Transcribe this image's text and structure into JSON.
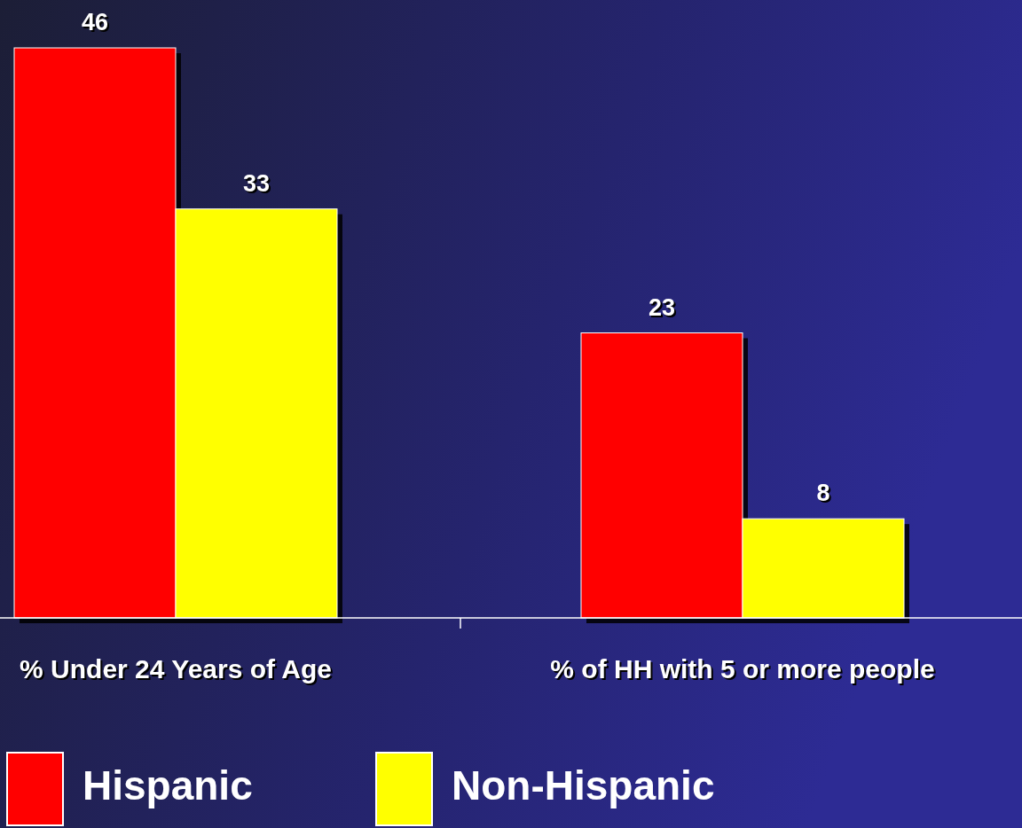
{
  "chart_data": {
    "type": "bar",
    "categories": [
      "% Under 24 Years of Age",
      "% of HH with 5 or more people"
    ],
    "series": [
      {
        "name": "Hispanic",
        "color": "#ff0000",
        "values": [
          46,
          23
        ]
      },
      {
        "name": "Non-Hispanic",
        "color": "#ffff00",
        "values": [
          33,
          8
        ]
      }
    ],
    "data_labels": true,
    "legend": "bottom"
  }
}
